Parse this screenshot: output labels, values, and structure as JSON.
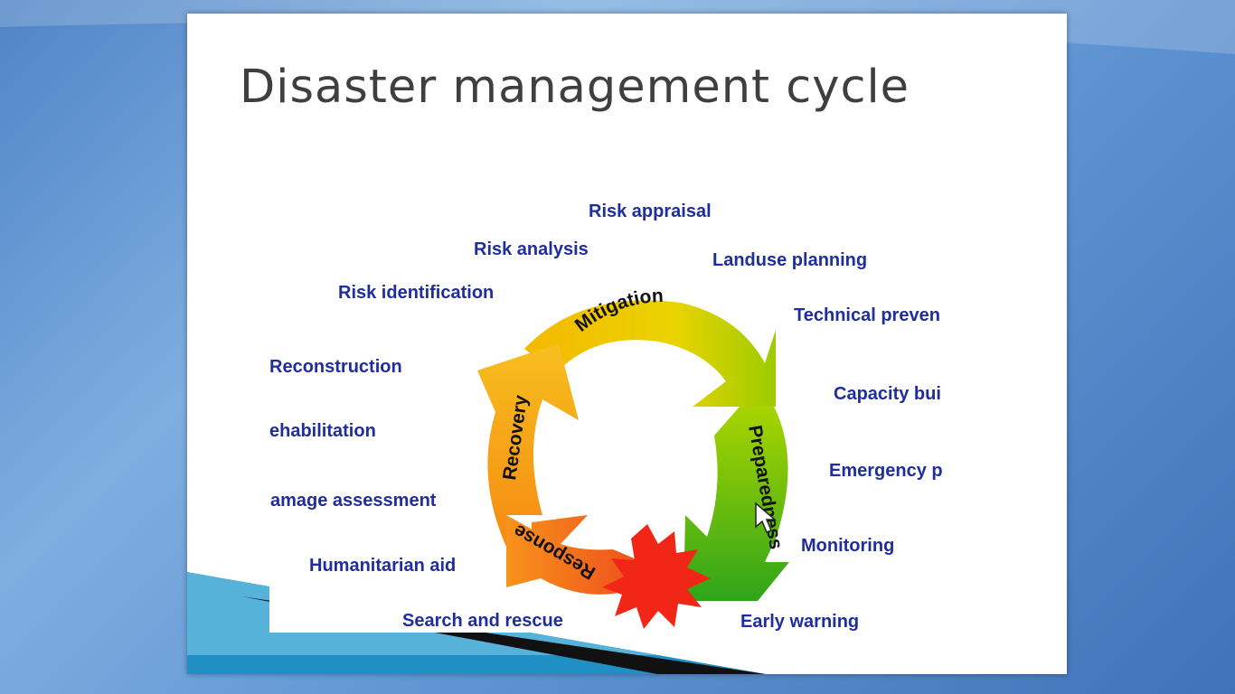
{
  "slide": {
    "title": "Disaster management cycle"
  },
  "phases": [
    "Mitigation",
    "Preparedness",
    "Response",
    "Recovery"
  ],
  "activities": [
    "Risk appraisal",
    "Risk analysis",
    "Landuse planning",
    "Risk identification",
    "Technical preven",
    "Reconstruction",
    "Capacity bui",
    "ehabilitation",
    "Emergency p",
    "amage assessment",
    "Monitoring",
    "Humanitarian aid",
    "Search and rescue",
    "Early warning"
  ],
  "colors": {
    "label_text": "#1f2e9c",
    "title_text": "#3f3f3f",
    "mitigation": "#f5c500",
    "preparedness": "#7cc400",
    "response": "#f26b1c",
    "recovery": "#f39a12",
    "disaster_burst": "#f22617"
  }
}
